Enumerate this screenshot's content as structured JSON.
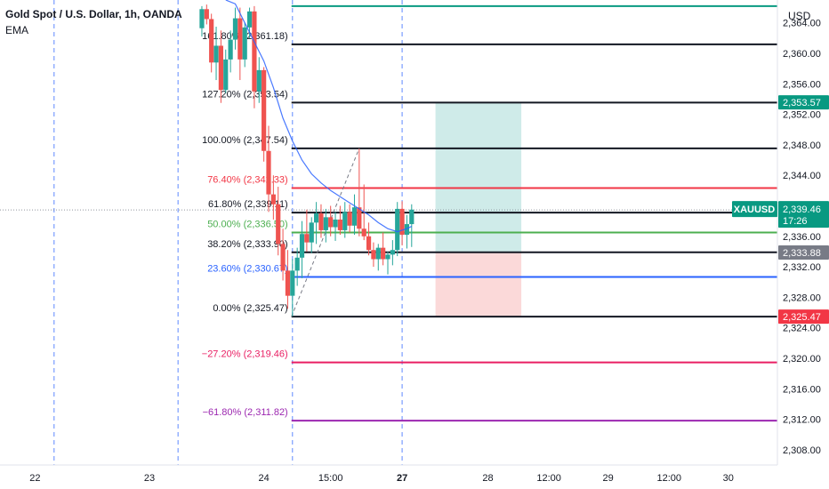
{
  "header": {
    "title": "Gold Spot / U.S. Dollar, 1h, OANDA",
    "indicator": "EMA"
  },
  "axis": {
    "currency": "USD",
    "ticks": [
      "2,364.00",
      "2,360.00",
      "2,356.00",
      "2,352.00",
      "2,348.00",
      "2,344.00",
      "2,340.00",
      "2,336.00",
      "2,332.00",
      "2,328.00",
      "2,324.00",
      "2,320.00",
      "2,316.00",
      "2,312.00",
      "2,308.00"
    ]
  },
  "colors": {
    "bull": "#26a69a",
    "bear": "#ef5350",
    "ema": "#2962ff",
    "black": "#131722",
    "red": "#f23645",
    "green": "#4caf50",
    "blue": "#2962ff",
    "crimson": "#e91e63",
    "purple": "#9c27b0",
    "teal": "#089981",
    "gray": "#787b86"
  },
  "chart_data": {
    "type": "candlestick",
    "symbol": "XAUUSD",
    "ylim": [
      2306,
      2367
    ],
    "x_labels": [
      {
        "label": "22",
        "x": 0.5
      },
      {
        "label": "23",
        "x": 12.5
      },
      {
        "label": "24",
        "x": 24.5
      },
      {
        "label": "15:00",
        "x": 31.5
      },
      {
        "label": "27",
        "x": 39
      },
      {
        "label": "28",
        "x": 48
      },
      {
        "label": "12:00",
        "x": 54.4
      },
      {
        "label": "29",
        "x": 60.6
      },
      {
        "label": "12:00",
        "x": 67
      },
      {
        "label": "30",
        "x": 73.2
      }
    ],
    "session_lines": [
      2.5,
      15.5,
      27.5,
      39
    ],
    "candles": [
      {
        "t": 18,
        "o": 2363.3,
        "h": 2366.2,
        "l": 2362.2,
        "c": 2365.8
      },
      {
        "t": 18.5,
        "o": 2365.8,
        "h": 2366.4,
        "l": 2363.8,
        "c": 2364.5
      },
      {
        "t": 19,
        "o": 2364.5,
        "h": 2365.2,
        "l": 2357.5,
        "c": 2358.8
      },
      {
        "t": 19.5,
        "o": 2358.8,
        "h": 2363.5,
        "l": 2356.5,
        "c": 2361.0
      },
      {
        "t": 20,
        "o": 2361.0,
        "h": 2363.0,
        "l": 2353.5,
        "c": 2355.2
      },
      {
        "t": 20.5,
        "o": 2355.2,
        "h": 2360.5,
        "l": 2354.8,
        "c": 2359.2
      },
      {
        "t": 21,
        "o": 2359.2,
        "h": 2363.0,
        "l": 2357.5,
        "c": 2361.8
      },
      {
        "t": 21.5,
        "o": 2361.8,
        "h": 2366.0,
        "l": 2360.5,
        "c": 2364.6
      },
      {
        "t": 22,
        "o": 2364.6,
        "h": 2366.0,
        "l": 2356.5,
        "c": 2359.2
      },
      {
        "t": 22.5,
        "o": 2359.2,
        "h": 2364.0,
        "l": 2358.2,
        "c": 2363.4
      },
      {
        "t": 23,
        "o": 2363.4,
        "h": 2366.0,
        "l": 2362.0,
        "c": 2365.5
      },
      {
        "t": 23.5,
        "o": 2365.5,
        "h": 2366.2,
        "l": 2352.8,
        "c": 2355.0
      },
      {
        "t": 24,
        "o": 2355.0,
        "h": 2359.5,
        "l": 2353.5,
        "c": 2357.8
      },
      {
        "t": 24.5,
        "o": 2357.8,
        "h": 2358.2,
        "l": 2345.8,
        "c": 2347.2
      },
      {
        "t": 25,
        "o": 2347.2,
        "h": 2350.5,
        "l": 2339.2,
        "c": 2341.5
      },
      {
        "t": 25.5,
        "o": 2341.5,
        "h": 2344.0,
        "l": 2338.2,
        "c": 2340.2
      },
      {
        "t": 26,
        "o": 2340.2,
        "h": 2342.5,
        "l": 2333.5,
        "c": 2335.0
      },
      {
        "t": 26.5,
        "o": 2335.0,
        "h": 2337.0,
        "l": 2330.2,
        "c": 2331.5
      },
      {
        "t": 27,
        "o": 2331.5,
        "h": 2334.2,
        "l": 2326.5,
        "c": 2328.2
      },
      {
        "t": 27.5,
        "o": 2328.2,
        "h": 2333.0,
        "l": 2325.5,
        "c": 2331.5
      },
      {
        "t": 28,
        "o": 2331.5,
        "h": 2334.5,
        "l": 2329.5,
        "c": 2333.2
      },
      {
        "t": 28.5,
        "o": 2333.2,
        "h": 2338.0,
        "l": 2330.5,
        "c": 2336.3
      },
      {
        "t": 29,
        "o": 2336.3,
        "h": 2339.5,
        "l": 2334.0,
        "c": 2335.2
      },
      {
        "t": 29.5,
        "o": 2335.2,
        "h": 2338.5,
        "l": 2333.8,
        "c": 2337.8
      },
      {
        "t": 30,
        "o": 2337.8,
        "h": 2340.5,
        "l": 2335.0,
        "c": 2339.0
      },
      {
        "t": 30.5,
        "o": 2339.0,
        "h": 2340.2,
        "l": 2335.8,
        "c": 2336.8
      },
      {
        "t": 31,
        "o": 2336.8,
        "h": 2339.6,
        "l": 2335.2,
        "c": 2338.5
      },
      {
        "t": 31.5,
        "o": 2338.5,
        "h": 2340.0,
        "l": 2336.0,
        "c": 2337.2
      },
      {
        "t": 32,
        "o": 2337.2,
        "h": 2339.2,
        "l": 2335.4,
        "c": 2338.2
      },
      {
        "t": 32.5,
        "o": 2338.2,
        "h": 2340.0,
        "l": 2336.2,
        "c": 2336.8
      },
      {
        "t": 33,
        "o": 2336.8,
        "h": 2340.5,
        "l": 2335.8,
        "c": 2339.2
      },
      {
        "t": 33.5,
        "o": 2339.2,
        "h": 2340.2,
        "l": 2336.5,
        "c": 2337.4
      },
      {
        "t": 34,
        "o": 2337.4,
        "h": 2341.5,
        "l": 2336.2,
        "c": 2339.8
      },
      {
        "t": 34.5,
        "o": 2339.8,
        "h": 2347.5,
        "l": 2336.0,
        "c": 2337.0
      },
      {
        "t": 35,
        "o": 2337.0,
        "h": 2342.8,
        "l": 2335.5,
        "c": 2336.0
      },
      {
        "t": 35.5,
        "o": 2336.0,
        "h": 2337.8,
        "l": 2333.5,
        "c": 2334.2
      },
      {
        "t": 36,
        "o": 2334.2,
        "h": 2335.2,
        "l": 2332.0,
        "c": 2333.0
      },
      {
        "t": 36.5,
        "o": 2333.0,
        "h": 2335.0,
        "l": 2331.5,
        "c": 2334.5
      },
      {
        "t": 37,
        "o": 2334.5,
        "h": 2336.5,
        "l": 2332.2,
        "c": 2333.0
      },
      {
        "t": 37.5,
        "o": 2333.0,
        "h": 2334.0,
        "l": 2331.0,
        "c": 2333.6
      },
      {
        "t": 38,
        "o": 2333.6,
        "h": 2335.5,
        "l": 2332.2,
        "c": 2334.2
      },
      {
        "t": 38.5,
        "o": 2334.2,
        "h": 2340.5,
        "l": 2333.4,
        "c": 2339.6
      },
      {
        "t": 39,
        "o": 2339.6,
        "h": 2340.6,
        "l": 2334.8,
        "c": 2336.2
      },
      {
        "t": 39.5,
        "o": 2336.2,
        "h": 2338.8,
        "l": 2334.4,
        "c": 2337.6
      },
      {
        "t": 40,
        "o": 2337.6,
        "h": 2340.2,
        "l": 2334.6,
        "c": 2339.5
      }
    ],
    "ema": [
      [
        20.5,
        2367
      ],
      [
        21.5,
        2366.5
      ],
      [
        22.5,
        2364
      ],
      [
        23.5,
        2361.5
      ],
      [
        24.5,
        2359
      ],
      [
        25.5,
        2355.5
      ],
      [
        26.5,
        2351.5
      ],
      [
        27.5,
        2348.5
      ],
      [
        28.5,
        2346
      ],
      [
        29.5,
        2344.2
      ],
      [
        30.5,
        2343
      ],
      [
        31.5,
        2342
      ],
      [
        32.5,
        2341.2
      ],
      [
        33.5,
        2340.4
      ],
      [
        34.5,
        2339.6
      ],
      [
        35.5,
        2338.8
      ],
      [
        36.5,
        2337.8
      ],
      [
        37.5,
        2337.0
      ],
      [
        38.5,
        2336.6
      ],
      [
        39.5,
        2337.0
      ],
      [
        40,
        2337.3
      ]
    ],
    "fib": {
      "x_start": 27.4,
      "x_end": 80,
      "levels": [
        {
          "ratio": "161.80%",
          "price": "2,361.18",
          "value": 2361.18,
          "color": "black"
        },
        {
          "ratio": "127.20%",
          "price": "2,353.54",
          "value": 2353.54,
          "color": "black"
        },
        {
          "ratio": "100.00%",
          "price": "2,347.54",
          "value": 2347.54,
          "color": "black"
        },
        {
          "ratio": "76.40%",
          "price": "2,342.33",
          "value": 2342.33,
          "color": "red"
        },
        {
          "ratio": "61.80%",
          "price": "2,339.11",
          "value": 2339.11,
          "color": "black"
        },
        {
          "ratio": "50.00%",
          "price": "2,336.50",
          "value": 2336.5,
          "color": "green"
        },
        {
          "ratio": "38.20%",
          "price": "2,333.90",
          "value": 2333.9,
          "color": "black"
        },
        {
          "ratio": "23.60%",
          "price": "2,330.67",
          "value": 2330.67,
          "color": "blue"
        },
        {
          "ratio": "0.00%",
          "price": "2,325.47",
          "value": 2325.47,
          "color": "black"
        },
        {
          "ratio": "−27.20%",
          "price": "2,319.46",
          "value": 2319.46,
          "color": "crimson"
        },
        {
          "ratio": "−61.80%",
          "price": "2,311.82",
          "value": 2311.82,
          "color": "purple"
        }
      ],
      "top_line": 2366.2,
      "trend": [
        [
          27.4,
          2325.47
        ],
        [
          34.5,
          2347.54
        ]
      ]
    },
    "position": {
      "x_start": 42.5,
      "x_end": 51.5,
      "target": 2353.57,
      "entry": 2333.88,
      "stop": 2325.47
    },
    "current_price": 2339.46,
    "price_labels": [
      {
        "text": "2,353.57",
        "value": 2353.57,
        "bg": "#089981"
      },
      {
        "text": "2,333.88",
        "value": 2333.88,
        "bg": "#787b86"
      },
      {
        "text": "2,325.47",
        "value": 2325.47,
        "bg": "#f23645"
      }
    ],
    "price_tag": {
      "symbol": "XAUUSD",
      "price": "2,339.46",
      "countdown": "17:26",
      "value": 2339.46
    }
  }
}
